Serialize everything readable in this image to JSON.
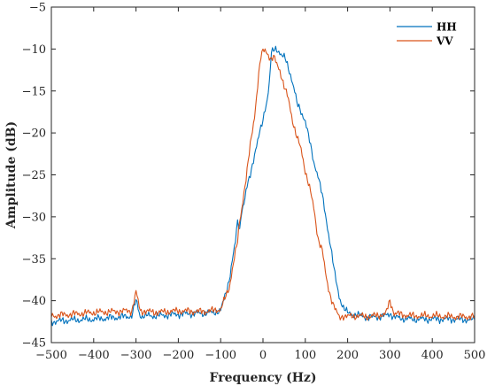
{
  "chart_data": {
    "type": "line",
    "title": "",
    "xlabel": "Frequency (Hz)",
    "ylabel": "Amplitude (dB)",
    "xlim": [
      -500,
      500
    ],
    "ylim": [
      -45,
      -5
    ],
    "xticks": [
      -500,
      -400,
      -300,
      -200,
      -100,
      0,
      100,
      200,
      300,
      400,
      500
    ],
    "yticks": [
      -5,
      -10,
      -15,
      -20,
      -25,
      -30,
      -35,
      -40,
      -45
    ],
    "xtick_labels": [
      "−500",
      "−400",
      "−300",
      "−200",
      "−100",
      "0",
      "100",
      "200",
      "300",
      "400",
      "500"
    ],
    "ytick_labels": [
      "−5",
      "−10",
      "−15",
      "−20",
      "−25",
      "−30",
      "−35",
      "−40",
      "−45"
    ],
    "grid": false,
    "legend_position": "top-right",
    "series": [
      {
        "name": "HH",
        "color": "#0072BD",
        "x": [
          -500,
          -450,
          -400,
          -350,
          -310,
          -300,
          -290,
          -250,
          -200,
          -150,
          -120,
          -100,
          -90,
          -80,
          -75,
          -70,
          -65,
          -60,
          -55,
          -50,
          -45,
          -40,
          -30,
          -20,
          -10,
          0,
          5,
          10,
          15,
          20,
          25,
          30,
          35,
          40,
          45,
          50,
          55,
          60,
          65,
          70,
          75,
          80,
          90,
          100,
          110,
          120,
          130,
          140,
          150,
          160,
          170,
          180,
          190,
          200,
          220,
          250,
          290,
          300,
          310,
          350,
          400,
          450,
          500
        ],
        "y": [
          -42.5,
          -42.3,
          -42.2,
          -42.0,
          -41.8,
          -40.0,
          -41.8,
          -41.8,
          -41.6,
          -41.5,
          -41.4,
          -41.2,
          -39.5,
          -37.5,
          -36.0,
          -34.5,
          -33.0,
          -30.5,
          -31.5,
          -29.0,
          -28.5,
          -27.0,
          -25.0,
          -22.5,
          -20.5,
          -18.5,
          -17.0,
          -16.0,
          -14.0,
          -10.5,
          -10.2,
          -10.0,
          -10.1,
          -10.4,
          -10.8,
          -11.0,
          -11.5,
          -12.3,
          -13.0,
          -14.0,
          -15.0,
          -16.5,
          -17.5,
          -18.5,
          -21.0,
          -23.5,
          -25.0,
          -27.5,
          -30.5,
          -33.5,
          -37.0,
          -39.5,
          -40.8,
          -41.5,
          -41.7,
          -42.0,
          -41.8,
          -41.5,
          -42.0,
          -42.2,
          -42.2,
          -42.2,
          -42.3
        ]
      },
      {
        "name": "VV",
        "color": "#D95319",
        "x": [
          -500,
          -450,
          -400,
          -350,
          -310,
          -300,
          -290,
          -250,
          -200,
          -150,
          -120,
          -100,
          -90,
          -80,
          -70,
          -60,
          -55,
          -50,
          -45,
          -40,
          -30,
          -20,
          -10,
          -5,
          0,
          5,
          10,
          15,
          20,
          25,
          30,
          40,
          50,
          60,
          70,
          80,
          90,
          100,
          110,
          120,
          130,
          140,
          150,
          160,
          170,
          180,
          190,
          200,
          220,
          250,
          290,
          300,
          310,
          350,
          400,
          450,
          500
        ],
        "y": [
          -41.8,
          -41.6,
          -41.4,
          -41.3,
          -41.2,
          -39.0,
          -41.2,
          -41.4,
          -41.2,
          -41.3,
          -41.2,
          -41.0,
          -39.8,
          -38.5,
          -35.5,
          -33.0,
          -30.5,
          -29.0,
          -27.0,
          -25.5,
          -21.5,
          -18.0,
          -13.0,
          -11.0,
          -10.3,
          -10.1,
          -10.4,
          -10.9,
          -11.3,
          -11.0,
          -11.5,
          -12.5,
          -14.5,
          -16.0,
          -18.5,
          -20.5,
          -22.0,
          -24.5,
          -26.5,
          -29.0,
          -32.5,
          -34.0,
          -37.5,
          -39.5,
          -41.0,
          -42.0,
          -41.8,
          -41.9,
          -41.8,
          -41.9,
          -41.6,
          -40.0,
          -41.5,
          -41.8,
          -41.8,
          -41.9,
          -41.9
        ]
      }
    ]
  }
}
